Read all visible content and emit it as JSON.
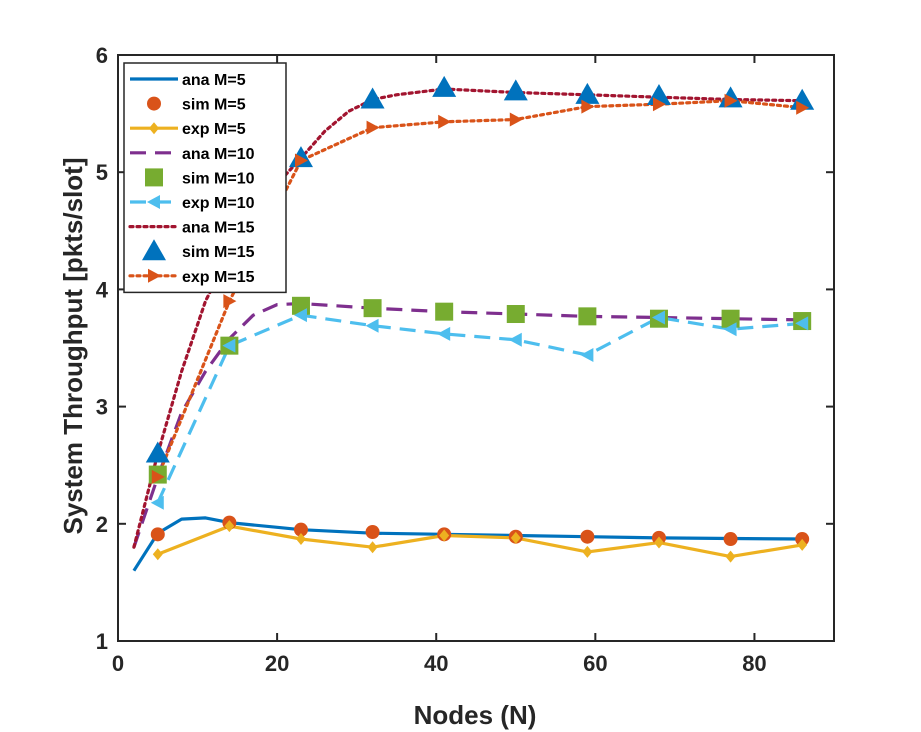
{
  "chart_data": {
    "type": "line",
    "title": "",
    "xlabel": "Nodes (N)",
    "ylabel": "System Throughput [pkts/slot]",
    "xlim": [
      0,
      90
    ],
    "ylim": [
      1,
      6
    ],
    "xticks": [
      0,
      20,
      40,
      60,
      80
    ],
    "yticks": [
      1,
      2,
      3,
      4,
      5,
      6
    ],
    "grid": false,
    "legend_position": "top-left",
    "series": [
      {
        "name": "ana M=5",
        "style": "solid",
        "marker": "none",
        "color": "#0072BD",
        "x": [
          2,
          5,
          8,
          11,
          14,
          17,
          20,
          23,
          32,
          41,
          50,
          59,
          68,
          77,
          86
        ],
        "y": [
          1.6,
          1.92,
          2.04,
          2.05,
          2.01,
          1.99,
          1.97,
          1.95,
          1.92,
          1.91,
          1.9,
          1.89,
          1.88,
          1.875,
          1.87
        ]
      },
      {
        "name": "sim M=5",
        "style": "none",
        "marker": "circle",
        "color": "#D95319",
        "x": [
          5,
          14,
          23,
          32,
          41,
          50,
          59,
          68,
          77,
          86
        ],
        "y": [
          1.91,
          2.01,
          1.95,
          1.93,
          1.91,
          1.89,
          1.89,
          1.88,
          1.87,
          1.87
        ]
      },
      {
        "name": "exp M=5",
        "style": "solid",
        "marker": "diamond",
        "color": "#EDB120",
        "x": [
          5,
          14,
          23,
          32,
          41,
          50,
          59,
          68,
          77,
          86
        ],
        "y": [
          1.74,
          1.98,
          1.87,
          1.8,
          1.9,
          1.88,
          1.76,
          1.84,
          1.72,
          1.82
        ]
      },
      {
        "name": "ana M=10",
        "style": "dashed",
        "marker": "none",
        "color": "#7E2F8E",
        "x": [
          2,
          5,
          8,
          11,
          14,
          17,
          20,
          23,
          32,
          41,
          50,
          59,
          68,
          77,
          86
        ],
        "y": [
          1.8,
          2.4,
          2.95,
          3.3,
          3.58,
          3.78,
          3.87,
          3.88,
          3.84,
          3.81,
          3.79,
          3.77,
          3.76,
          3.75,
          3.74
        ]
      },
      {
        "name": "sim M=10",
        "style": "none",
        "marker": "square",
        "color": "#77AC30",
        "x": [
          5,
          14,
          23,
          32,
          41,
          50,
          59,
          68,
          77,
          86
        ],
        "y": [
          2.42,
          3.52,
          3.86,
          3.84,
          3.81,
          3.79,
          3.77,
          3.75,
          3.75,
          3.73
        ]
      },
      {
        "name": "exp M=10",
        "style": "dashed",
        "marker": "triangle-left",
        "color": "#4DBEEE",
        "x": [
          5,
          14,
          23,
          32,
          41,
          50,
          59,
          68,
          77,
          86
        ],
        "y": [
          2.18,
          3.52,
          3.78,
          3.69,
          3.62,
          3.57,
          3.44,
          3.76,
          3.66,
          3.71
        ]
      },
      {
        "name": "ana M=15",
        "style": "dotted",
        "marker": "none",
        "color": "#A2142F",
        "x": [
          2,
          5,
          8,
          11,
          14,
          17,
          20,
          23,
          26,
          29,
          32,
          35,
          41,
          50,
          59,
          68,
          77,
          86
        ],
        "y": [
          1.8,
          2.6,
          3.3,
          3.9,
          4.3,
          4.6,
          4.9,
          5.12,
          5.35,
          5.52,
          5.62,
          5.66,
          5.71,
          5.68,
          5.66,
          5.64,
          5.62,
          5.61
        ]
      },
      {
        "name": "sim M=15",
        "style": "none",
        "marker": "triangle-up",
        "color": "#0072BD",
        "x": [
          5,
          23,
          32,
          41,
          50,
          59,
          68,
          77,
          86
        ],
        "y": [
          2.6,
          5.12,
          5.62,
          5.72,
          5.69,
          5.66,
          5.65,
          5.63,
          5.61
        ]
      },
      {
        "name": "exp M=15",
        "style": "dotted",
        "marker": "triangle-right",
        "color": "#D95319",
        "x": [
          5,
          14,
          23,
          32,
          41,
          50,
          59,
          68,
          77,
          86
        ],
        "y": [
          2.4,
          3.9,
          5.1,
          5.38,
          5.43,
          5.45,
          5.56,
          5.58,
          5.61,
          5.55
        ]
      }
    ]
  }
}
